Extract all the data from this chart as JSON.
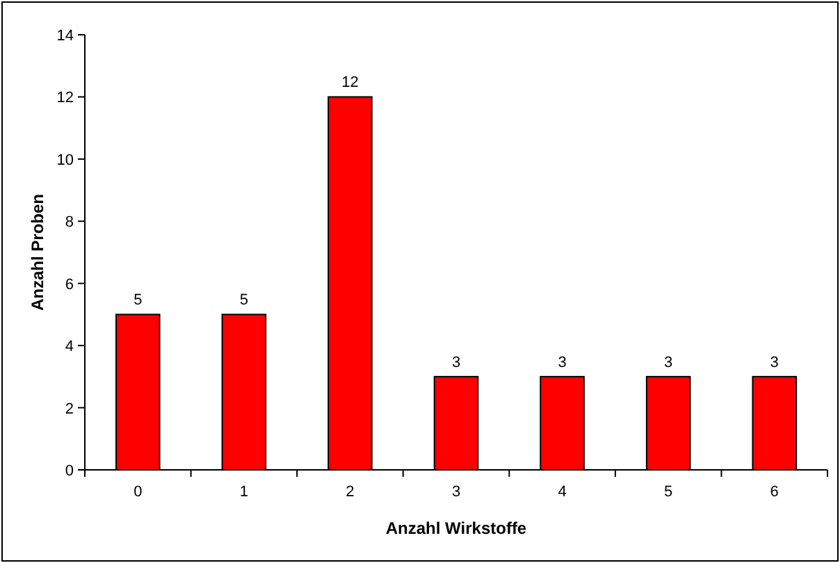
{
  "chart_data": {
    "type": "bar",
    "xlabel": "Anzahl Wirkstoffe",
    "ylabel": "Anzahl Proben",
    "categories": [
      "0",
      "1",
      "2",
      "3",
      "4",
      "5",
      "6"
    ],
    "values": [
      5,
      5,
      12,
      3,
      3,
      3,
      3
    ],
    "color": "#ff0000",
    "ylim": [
      0,
      14
    ],
    "yticks": [
      0,
      2,
      4,
      6,
      8,
      10,
      12,
      14
    ],
    "grid": false,
    "data_labels": true
  }
}
